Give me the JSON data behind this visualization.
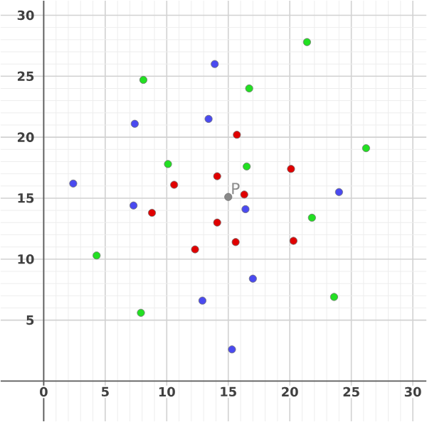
{
  "chart_data": {
    "type": "scatter",
    "marker": "circle",
    "grid": true,
    "xlim": [
      -3.5,
      31.1
    ],
    "ylim": [
      -3.3,
      31.2
    ],
    "xticks": [
      0,
      5,
      10,
      15,
      20,
      25,
      30
    ],
    "yticks": [
      5,
      10,
      15,
      20,
      25,
      30
    ],
    "series": [
      {
        "color": "#4a4af0",
        "x": [
          7.4,
          13.4,
          13.9,
          2.4,
          7.3,
          24.0,
          16.4,
          12.9,
          17.0,
          15.3
        ],
        "values": [
          21.1,
          21.5,
          26.0,
          16.2,
          14.4,
          15.5,
          14.1,
          6.6,
          8.4,
          2.6
        ]
      },
      {
        "color": "#e00000",
        "x": [
          10.6,
          8.8,
          15.7,
          20.1,
          14.1,
          16.3,
          12.3,
          14.1,
          15.6,
          20.3
        ],
        "values": [
          16.1,
          13.8,
          20.2,
          17.4,
          16.8,
          15.3,
          10.8,
          13.0,
          11.4,
          11.5
        ]
      },
      {
        "color": "#22e022",
        "x": [
          8.1,
          10.1,
          21.4,
          16.7,
          26.2,
          16.5,
          4.3,
          7.9,
          21.8,
          23.6
        ],
        "values": [
          24.7,
          17.8,
          27.8,
          24.0,
          19.1,
          17.6,
          10.3,
          5.6,
          13.4,
          6.9
        ]
      },
      {
        "color": "#888888",
        "x": [
          15.0
        ],
        "values": [
          15.1
        ]
      }
    ],
    "annotations": [
      {
        "text": "P",
        "x": 15.0,
        "y": 15.1
      }
    ]
  }
}
